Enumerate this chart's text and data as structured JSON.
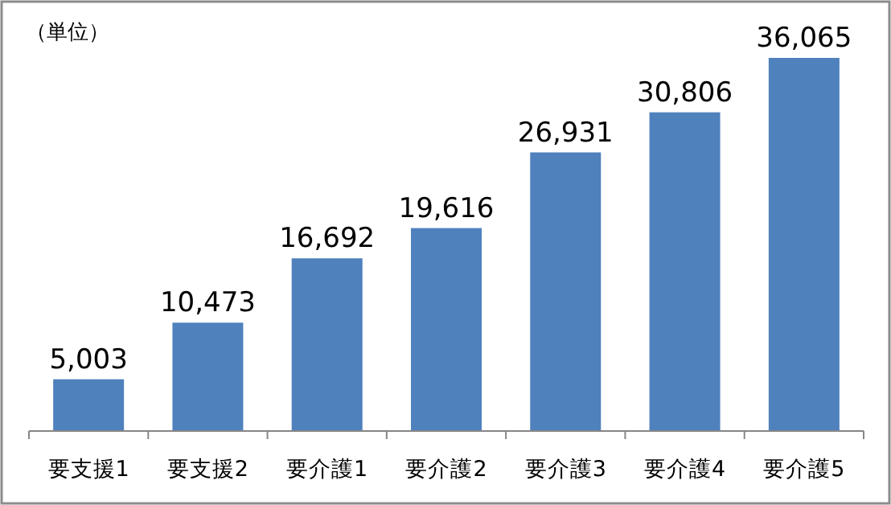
{
  "chart_data": {
    "type": "bar",
    "categories": [
      "要支援1",
      "要支援2",
      "要介護1",
      "要介護2",
      "要介護3",
      "要介護4",
      "要介護5"
    ],
    "values": [
      5003,
      10473,
      16692,
      19616,
      26931,
      30806,
      36065
    ],
    "color": "#4f81bd",
    "value_labels": [
      "5,003",
      "10,473",
      "16,692",
      "19,616",
      "26,931",
      "30,806",
      "36,065"
    ],
    "annotations": [
      "（単位）"
    ]
  }
}
